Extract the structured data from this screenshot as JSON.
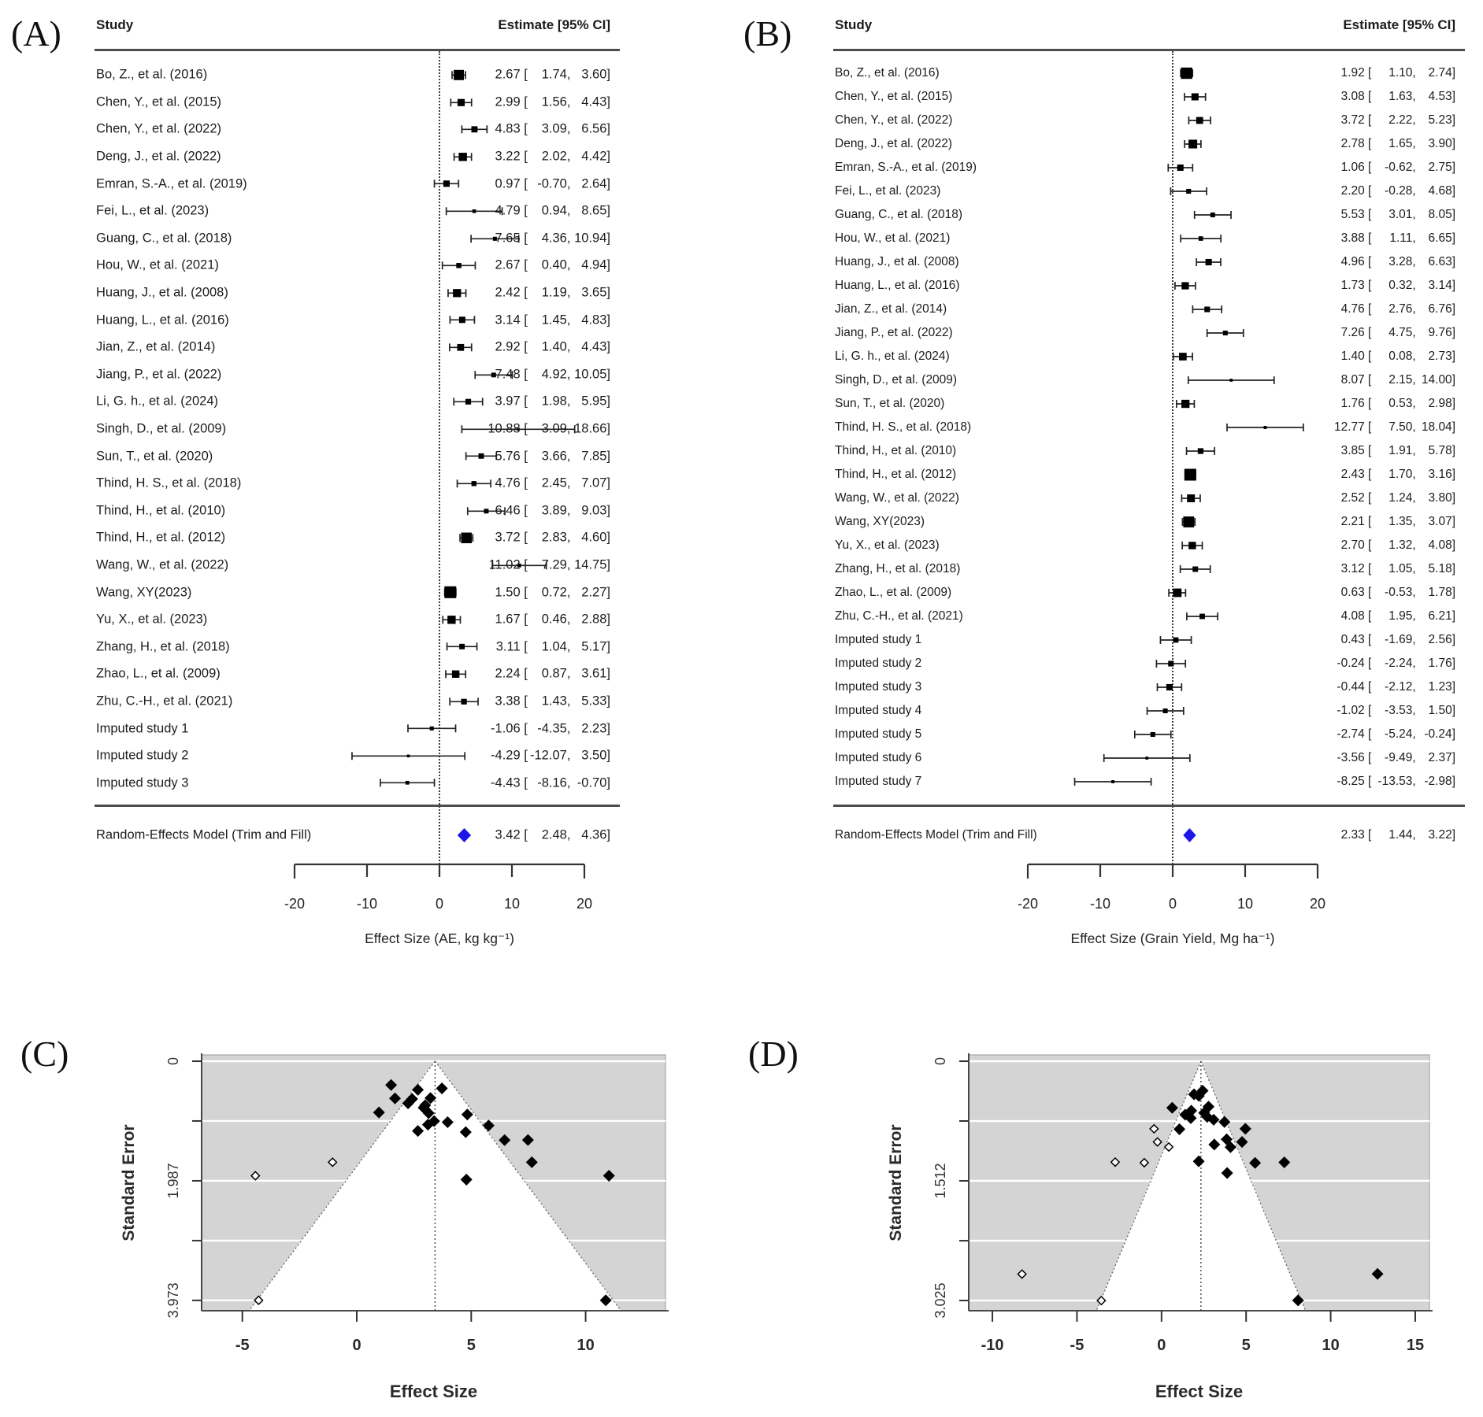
{
  "colors": {
    "summary_diamond": "#1c16e8",
    "funnel_background": "#d4d4d4",
    "funnel_gridline": "#ffffff",
    "marker_black": "#000000",
    "text": "#1c1c1c",
    "rule_gray": "#4d4d4d"
  },
  "chart_data": [
    {
      "id": "A",
      "tag": "(A)",
      "type": "table",
      "variant": "forest-plot",
      "columns": {
        "study": "Study",
        "estimate": "Estimate [95% CI]"
      },
      "xlabel": "Effect Size (AE, kg kg⁻¹)",
      "axis_ticks": [
        -20,
        -10,
        0,
        10,
        20
      ],
      "xlim": [
        -25,
        25
      ],
      "zero_line": 0,
      "summary": {
        "label": "Random-Effects Model (Trim and Fill)",
        "est": "3.42",
        "lo": "2.48",
        "hi": "4.36"
      },
      "rows": [
        {
          "study": "Bo, Z., et al. (2016)",
          "est": "2.67",
          "lo": "1.74",
          "hi": "3.60",
          "imputed": false
        },
        {
          "study": "Chen, Y., et al. (2015)",
          "est": "2.99",
          "lo": "1.56",
          "hi": "4.43",
          "imputed": false
        },
        {
          "study": "Chen, Y., et al. (2022)",
          "est": "4.83",
          "lo": "3.09",
          "hi": "6.56",
          "imputed": false
        },
        {
          "study": "Deng, J., et al. (2022)",
          "est": "3.22",
          "lo": "2.02",
          "hi": "4.42",
          "imputed": false
        },
        {
          "study": "Emran, S.-A., et al. (2019)",
          "est": "0.97",
          "lo": "-0.70",
          "hi": "2.64",
          "imputed": false
        },
        {
          "study": "Fei, L., et al. (2023)",
          "est": "4.79",
          "lo": "0.94",
          "hi": "8.65",
          "imputed": false
        },
        {
          "study": "Guang, C., et al. (2018)",
          "est": "7.65",
          "lo": "4.36",
          "hi": "10.94",
          "imputed": false
        },
        {
          "study": "Hou, W., et al. (2021)",
          "est": "2.67",
          "lo": "0.40",
          "hi": "4.94",
          "imputed": false
        },
        {
          "study": "Huang, J., et al. (2008)",
          "est": "2.42",
          "lo": "1.19",
          "hi": "3.65",
          "imputed": false
        },
        {
          "study": "Huang, L., et al. (2016)",
          "est": "3.14",
          "lo": "1.45",
          "hi": "4.83",
          "imputed": false
        },
        {
          "study": "Jian, Z., et al. (2014)",
          "est": "2.92",
          "lo": "1.40",
          "hi": "4.43",
          "imputed": false
        },
        {
          "study": "Jiang, P., et al. (2022)",
          "est": "7.48",
          "lo": "4.92",
          "hi": "10.05",
          "imputed": false
        },
        {
          "study": "Li, G. h., et al. (2024)",
          "est": "3.97",
          "lo": "1.98",
          "hi": "5.95",
          "imputed": false
        },
        {
          "study": "Singh, D., et al. (2009)",
          "est": "10.88",
          "lo": "3.09",
          "hi": "18.66",
          "imputed": false
        },
        {
          "study": "Sun, T., et al. (2020)",
          "est": "5.76",
          "lo": "3.66",
          "hi": "7.85",
          "imputed": false
        },
        {
          "study": "Thind, H. S., et al. (2018)",
          "est": "4.76",
          "lo": "2.45",
          "hi": "7.07",
          "imputed": false
        },
        {
          "study": "Thind, H., et al. (2010)",
          "est": "6.46",
          "lo": "3.89",
          "hi": "9.03",
          "imputed": false
        },
        {
          "study": "Thind, H., et al. (2012)",
          "est": "3.72",
          "lo": "2.83",
          "hi": "4.60",
          "imputed": false
        },
        {
          "study": "Wang, W., et al. (2022)",
          "est": "11.02",
          "lo": "7.29",
          "hi": "14.75",
          "imputed": false
        },
        {
          "study": "Wang, XY(2023)",
          "est": "1.50",
          "lo": "0.72",
          "hi": "2.27",
          "imputed": false
        },
        {
          "study": "Yu, X., et al. (2023)",
          "est": "1.67",
          "lo": "0.46",
          "hi": "2.88",
          "imputed": false
        },
        {
          "study": "Zhang, H., et al. (2018)",
          "est": "3.11",
          "lo": "1.04",
          "hi": "5.17",
          "imputed": false
        },
        {
          "study": "Zhao, L., et al. (2009)",
          "est": "2.24",
          "lo": "0.87",
          "hi": "3.61",
          "imputed": false
        },
        {
          "study": "Zhu, C.-H., et al. (2021)",
          "est": "3.38",
          "lo": "1.43",
          "hi": "5.33",
          "imputed": false
        },
        {
          "study": "Imputed study 1",
          "est": "-1.06",
          "lo": "-4.35",
          "hi": "2.23",
          "imputed": true
        },
        {
          "study": "Imputed study 2",
          "est": "-4.29",
          "lo": "-12.07",
          "hi": "3.50",
          "imputed": true
        },
        {
          "study": "Imputed study 3",
          "est": "-4.43",
          "lo": "-8.16",
          "hi": "-0.70",
          "imputed": true
        }
      ]
    },
    {
      "id": "B",
      "tag": "(B)",
      "type": "table",
      "variant": "forest-plot",
      "columns": {
        "study": "Study",
        "estimate": "Estimate [95% CI]"
      },
      "xlabel": "Effect Size (Grain Yield, Mg ha⁻¹)",
      "axis_ticks": [
        -20,
        -10,
        0,
        10,
        20
      ],
      "xlim": [
        -25,
        25
      ],
      "zero_line": 0,
      "summary": {
        "label": "Random-Effects Model (Trim and Fill)",
        "est": "2.33",
        "lo": "1.44",
        "hi": "3.22"
      },
      "rows": [
        {
          "study": "Bo, Z., et al. (2016)",
          "est": "1.92",
          "lo": "1.10",
          "hi": "2.74",
          "imputed": false
        },
        {
          "study": "Chen, Y., et al. (2015)",
          "est": "3.08",
          "lo": "1.63",
          "hi": "4.53",
          "imputed": false
        },
        {
          "study": "Chen, Y., et al. (2022)",
          "est": "3.72",
          "lo": "2.22",
          "hi": "5.23",
          "imputed": false
        },
        {
          "study": "Deng, J., et al. (2022)",
          "est": "2.78",
          "lo": "1.65",
          "hi": "3.90",
          "imputed": false
        },
        {
          "study": "Emran, S.-A., et al. (2019)",
          "est": "1.06",
          "lo": "-0.62",
          "hi": "2.75",
          "imputed": false
        },
        {
          "study": "Fei, L., et al. (2023)",
          "est": "2.20",
          "lo": "-0.28",
          "hi": "4.68",
          "imputed": false
        },
        {
          "study": "Guang, C., et al. (2018)",
          "est": "5.53",
          "lo": "3.01",
          "hi": "8.05",
          "imputed": false
        },
        {
          "study": "Hou, W., et al. (2021)",
          "est": "3.88",
          "lo": "1.11",
          "hi": "6.65",
          "imputed": false
        },
        {
          "study": "Huang, J., et al. (2008)",
          "est": "4.96",
          "lo": "3.28",
          "hi": "6.63",
          "imputed": false
        },
        {
          "study": "Huang, L., et al. (2016)",
          "est": "1.73",
          "lo": "0.32",
          "hi": "3.14",
          "imputed": false
        },
        {
          "study": "Jian, Z., et al. (2014)",
          "est": "4.76",
          "lo": "2.76",
          "hi": "6.76",
          "imputed": false
        },
        {
          "study": "Jiang, P., et al. (2022)",
          "est": "7.26",
          "lo": "4.75",
          "hi": "9.76",
          "imputed": false
        },
        {
          "study": "Li, G. h., et al. (2024)",
          "est": "1.40",
          "lo": "0.08",
          "hi": "2.73",
          "imputed": false
        },
        {
          "study": "Singh, D., et al. (2009)",
          "est": "8.07",
          "lo": "2.15",
          "hi": "14.00",
          "imputed": false
        },
        {
          "study": "Sun, T., et al. (2020)",
          "est": "1.76",
          "lo": "0.53",
          "hi": "2.98",
          "imputed": false
        },
        {
          "study": "Thind, H. S., et al. (2018)",
          "est": "12.77",
          "lo": "7.50",
          "hi": "18.04",
          "imputed": false
        },
        {
          "study": "Thind, H., et al. (2010)",
          "est": "3.85",
          "lo": "1.91",
          "hi": "5.78",
          "imputed": false
        },
        {
          "study": "Thind, H., et al. (2012)",
          "est": "2.43",
          "lo": "1.70",
          "hi": "3.16",
          "imputed": false
        },
        {
          "study": "Wang, W., et al. (2022)",
          "est": "2.52",
          "lo": "1.24",
          "hi": "3.80",
          "imputed": false
        },
        {
          "study": "Wang, XY(2023)",
          "est": "2.21",
          "lo": "1.35",
          "hi": "3.07",
          "imputed": false
        },
        {
          "study": "Yu, X., et al. (2023)",
          "est": "2.70",
          "lo": "1.32",
          "hi": "4.08",
          "imputed": false
        },
        {
          "study": "Zhang, H., et al. (2018)",
          "est": "3.12",
          "lo": "1.05",
          "hi": "5.18",
          "imputed": false
        },
        {
          "study": "Zhao, L., et al. (2009)",
          "est": "0.63",
          "lo": "-0.53",
          "hi": "1.78",
          "imputed": false
        },
        {
          "study": "Zhu, C.-H., et al. (2021)",
          "est": "4.08",
          "lo": "1.95",
          "hi": "6.21",
          "imputed": false
        },
        {
          "study": "Imputed study 1",
          "est": "0.43",
          "lo": "-1.69",
          "hi": "2.56",
          "imputed": true
        },
        {
          "study": "Imputed study 2",
          "est": "-0.24",
          "lo": "-2.24",
          "hi": "1.76",
          "imputed": true
        },
        {
          "study": "Imputed study 3",
          "est": "-0.44",
          "lo": "-2.12",
          "hi": "1.23",
          "imputed": true
        },
        {
          "study": "Imputed study 4",
          "est": "-1.02",
          "lo": "-3.53",
          "hi": "1.50",
          "imputed": true
        },
        {
          "study": "Imputed study 5",
          "est": "-2.74",
          "lo": "-5.24",
          "hi": "-0.24",
          "imputed": true
        },
        {
          "study": "Imputed study 6",
          "est": "-3.56",
          "lo": "-9.49",
          "hi": "2.37",
          "imputed": true
        },
        {
          "study": "Imputed study 7",
          "est": "-8.25",
          "lo": "-13.53",
          "hi": "-2.98",
          "imputed": true
        }
      ]
    },
    {
      "id": "C",
      "tag": "(C)",
      "type": "scatter",
      "variant": "funnel-plot",
      "xlabel": "Effect Size",
      "ylabel": "Standard Error",
      "xticks": [
        -5,
        0,
        5,
        10
      ],
      "yticks_major": [
        0,
        1.987,
        3.973
      ],
      "ytick_labels": [
        "0",
        "1.987",
        "3.973"
      ],
      "yticks_minor": [
        0.993,
        2.98
      ],
      "xlim": [
        -6.78,
        13.49
      ],
      "ylim": [
        -0.105,
        4.145
      ],
      "center_line": 3.42,
      "legend": "filled diamonds = observed studies; open diamonds = imputed studies",
      "points_source": "panel A rows (x = est, se = (hi - lo) / 3.92)"
    },
    {
      "id": "D",
      "tag": "(D)",
      "type": "scatter",
      "variant": "funnel-plot",
      "xlabel": "Effect Size",
      "ylabel": "Standard Error",
      "xticks": [
        -10,
        -5,
        0,
        5,
        10,
        15
      ],
      "yticks_major": [
        0,
        1.512,
        3.025
      ],
      "ytick_labels": [
        "0",
        "1.512",
        "3.025"
      ],
      "yticks_minor": [
        0.756,
        2.269
      ],
      "xlim": [
        -11.4,
        15.84
      ],
      "ylim": [
        -0.08,
        3.154
      ],
      "center_line": 2.33,
      "legend": "filled diamonds = observed studies; open diamonds = imputed studies",
      "points_source": "panel B rows (x = est, se = (hi - lo) / 3.92)"
    }
  ]
}
